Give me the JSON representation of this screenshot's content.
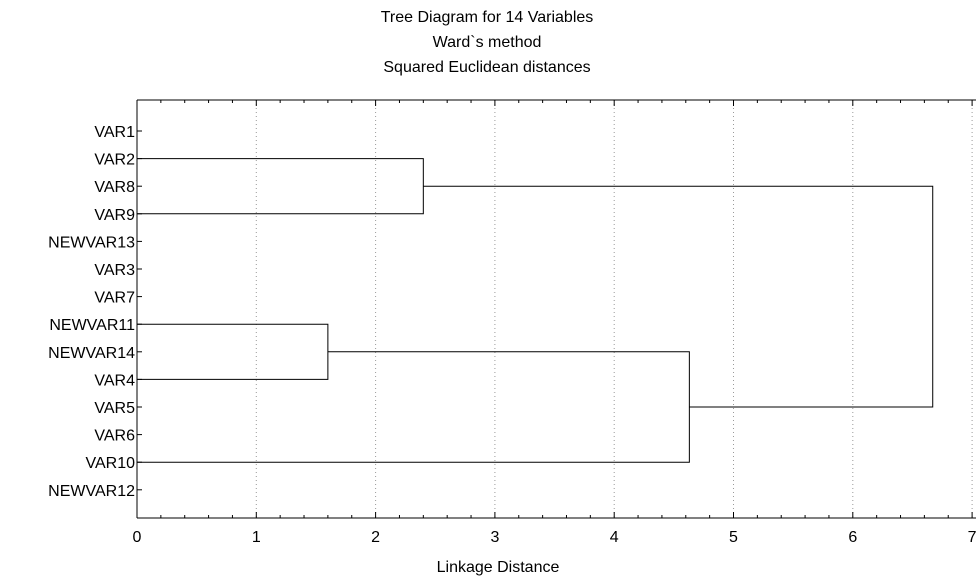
{
  "chart_data": {
    "type": "dendrogram",
    "title": [
      "Tree Diagram for 14 Variables",
      "Ward`s method",
      "Squared Euclidean distances"
    ],
    "xlabel": "Linkage Distance",
    "ylabel": "",
    "xlim": [
      0,
      7
    ],
    "x_ticks": [
      "0",
      "1",
      "2",
      "3",
      "4",
      "5",
      "6",
      "7"
    ],
    "grid": "vertical dotted",
    "leaves": [
      "VAR1",
      "VAR2",
      "VAR8",
      "VAR9",
      "NEWVAR13",
      "VAR3",
      "VAR7",
      "NEWVAR11",
      "NEWVAR14",
      "VAR4",
      "VAR5",
      "VAR6",
      "VAR10",
      "NEWVAR12"
    ],
    "merges": [
      {
        "from": [
          "VAR2",
          "VAR9"
        ],
        "distance": 2.4
      },
      {
        "from": [
          "NEWVAR11",
          "VAR4"
        ],
        "distance": 1.6
      },
      {
        "from": [
          "NEWVAR11-VAR4",
          "VAR10"
        ],
        "distance": 4.63
      },
      {
        "from": [
          "VAR2-VAR9",
          "NEWVAR11-VAR4-VAR10"
        ],
        "distance": 6.67
      }
    ]
  }
}
